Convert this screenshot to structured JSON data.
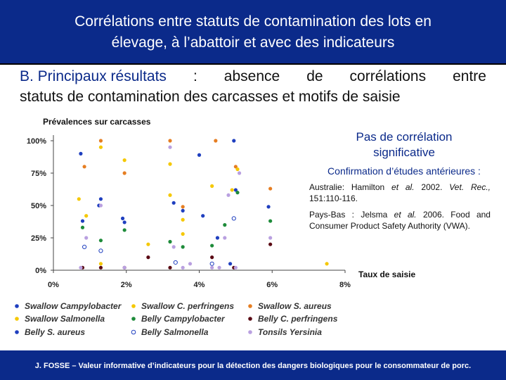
{
  "header": {
    "title_line1": "Corrélations entre statuts de contamination des lots en",
    "title_line2": "élevage, à l’abattoir et avec des indicateurs"
  },
  "subtitle": {
    "prefix": "B. Principaux résultats",
    "colon": ":",
    "line1_rest": [
      "absence",
      "de",
      "corrélations",
      "entre"
    ],
    "line2": "statuts de contamination des carcasses et motifs de saisie"
  },
  "side": {
    "heading_line1": "Pas de corrélation",
    "heading_line2": "significative",
    "confirmation": "Confirmation d’études antérieures :",
    "ref1": {
      "country": "Australie:",
      "authors": "Hamilton",
      "etal": "et al.",
      "year": "2002.",
      "journal": "Vet. Rec.,",
      "pages": "151:110-116."
    },
    "ref2": {
      "country": "Pays-Bas :",
      "authors": "Jelsma",
      "etal": "et al.",
      "rest": "2006. Food and Consumer Product Safety Authority (VWA)."
    },
    "colors": {
      "heading": "#0b2a8a",
      "text": "#111111"
    }
  },
  "footer": {
    "text": "J. FOSSE – Valeur informative d’indicateurs pour la détection des dangers biologiques pour le consommateur de porc."
  },
  "theme": {
    "band": "#0b2a8a",
    "band_text": "#ffffff"
  },
  "chart_data": {
    "type": "scatter",
    "title": "",
    "ylabel": "Prévalences sur carcasses",
    "xlabel": "Taux de saisie",
    "x_ticks": [
      "0%",
      "2%",
      "4%",
      "6%",
      "8%"
    ],
    "y_ticks": [
      "0%",
      "25%",
      "50%",
      "75%",
      "100%"
    ],
    "xlim": [
      0,
      8
    ],
    "ylim": [
      0,
      100
    ],
    "grid": false,
    "legend_position": "bottom",
    "series": [
      {
        "name": "Swallow Campylobacter",
        "lab1": "Swallow",
        "lab2": "Campylobacter",
        "color": "#1f3fbf",
        "marker": "filled",
        "points": [
          [
            0.75,
            90
          ],
          [
            1.3,
            55
          ],
          [
            1.95,
            37
          ],
          [
            3.55,
            46
          ],
          [
            4.0,
            89
          ],
          [
            4.95,
            100
          ],
          [
            5.0,
            62
          ],
          [
            5.9,
            49
          ]
        ]
      },
      {
        "name": "Swallow C. perfringens",
        "lab1": "Swallow",
        "lab2": "C. perfringens",
        "color": "#f5c800",
        "marker": "filled",
        "points": [
          [
            1.3,
            5
          ],
          [
            2.6,
            20
          ],
          [
            3.2,
            58
          ],
          [
            3.55,
            28
          ]
        ]
      },
      {
        "name": "Swallow S. aureus",
        "lab1": "Swallow",
        "lab2": "S. aureus",
        "color": "#e67e22",
        "marker": "filled",
        "points": [
          [
            0.85,
            80
          ],
          [
            1.3,
            100
          ],
          [
            1.95,
            75
          ],
          [
            3.2,
            100
          ],
          [
            3.55,
            49
          ],
          [
            4.45,
            100
          ],
          [
            5.0,
            80
          ],
          [
            5.95,
            63
          ]
        ]
      },
      {
        "name": "Swallow Salmonella",
        "lab1": "Swallow",
        "lab2": "Salmonella",
        "color": "#f5c800",
        "marker": "filled",
        "points": [
          [
            0.7,
            55
          ],
          [
            0.9,
            42
          ],
          [
            1.3,
            95
          ],
          [
            1.95,
            85
          ],
          [
            3.2,
            82
          ],
          [
            3.55,
            39
          ],
          [
            4.35,
            65
          ],
          [
            4.9,
            62
          ],
          [
            5.05,
            78
          ],
          [
            7.5,
            5
          ]
        ]
      },
      {
        "name": "Belly Campylobacter",
        "lab1": "Belly",
        "lab2": "Campylobacter",
        "color": "#1e8b3a",
        "marker": "filled",
        "points": [
          [
            0.8,
            33
          ],
          [
            1.3,
            23
          ],
          [
            1.95,
            31
          ],
          [
            3.2,
            22
          ],
          [
            3.55,
            18
          ],
          [
            4.35,
            19
          ],
          [
            4.7,
            35
          ],
          [
            5.05,
            60
          ],
          [
            5.95,
            38
          ]
        ]
      },
      {
        "name": "Belly C. perfringens",
        "lab1": "Belly",
        "lab2": "C. perfringens",
        "color": "#5a0a14",
        "marker": "filled",
        "points": [
          [
            0.8,
            2
          ],
          [
            1.3,
            2
          ],
          [
            1.95,
            2
          ],
          [
            2.6,
            10
          ],
          [
            3.2,
            2
          ],
          [
            4.35,
            10
          ],
          [
            4.95,
            2
          ],
          [
            5.95,
            20
          ]
        ]
      },
      {
        "name": "Belly S. aureus",
        "lab1": "Belly",
        "lab2": "S. aureus",
        "color": "#1f3fbf",
        "marker": "filled",
        "points": [
          [
            0.8,
            38
          ],
          [
            1.25,
            50
          ],
          [
            1.9,
            40
          ],
          [
            3.3,
            52
          ],
          [
            4.1,
            42
          ],
          [
            4.5,
            25
          ],
          [
            4.85,
            5
          ]
        ]
      },
      {
        "name": "Belly Salmonella",
        "lab1": "Belly",
        "lab2": "Salmonella",
        "color": "#1f3fbf",
        "marker": "open",
        "points": [
          [
            0.85,
            18
          ],
          [
            1.3,
            15
          ],
          [
            3.35,
            6
          ],
          [
            4.35,
            5
          ],
          [
            4.95,
            40
          ]
        ]
      },
      {
        "name": "Tonsils Yersinia",
        "lab1": "Tonsils",
        "lab2": "Yersinia",
        "color": "#b9a0e0",
        "marker": "filled",
        "points": [
          [
            0.75,
            2
          ],
          [
            0.9,
            25
          ],
          [
            1.3,
            50
          ],
          [
            1.95,
            2
          ],
          [
            3.2,
            95
          ],
          [
            3.3,
            18
          ],
          [
            3.55,
            2
          ],
          [
            3.75,
            5
          ],
          [
            4.35,
            2
          ],
          [
            4.55,
            2
          ],
          [
            4.7,
            25
          ],
          [
            4.8,
            58
          ],
          [
            5.0,
            2
          ],
          [
            5.1,
            75
          ],
          [
            5.95,
            25
          ]
        ]
      }
    ]
  }
}
